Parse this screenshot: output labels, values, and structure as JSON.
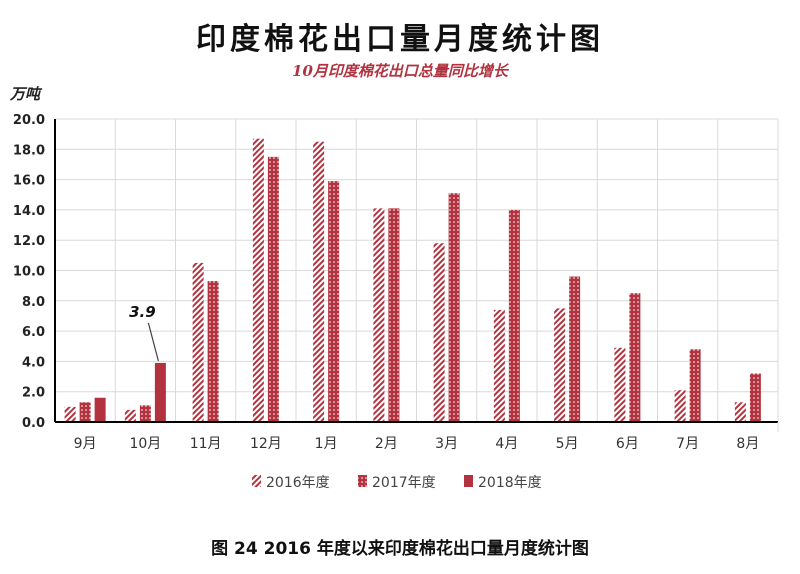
{
  "title": "印度棉花出口量月度统计图",
  "subtitle": "10月印度棉花出口总量同比增长",
  "unit_label": "万吨",
  "caption": "图 24   2016 年度以来印度棉花出口量月度统计图",
  "colors": {
    "series_2016": "#b2333f",
    "series_2017": "#b2333f",
    "series_2018": "#b2333f",
    "grid": "#d9d9d9",
    "axis": "#000000"
  },
  "chart_data": {
    "type": "bar",
    "categories": [
      "9月",
      "10月",
      "11月",
      "12月",
      "1月",
      "2月",
      "3月",
      "4月",
      "5月",
      "6月",
      "7月",
      "8月"
    ],
    "series": [
      {
        "name": "2016年度",
        "pattern": "diagonal-stripes",
        "values": [
          1.0,
          0.8,
          10.5,
          18.7,
          18.5,
          14.1,
          11.8,
          7.4,
          7.5,
          4.9,
          2.1,
          1.3
        ]
      },
      {
        "name": "2017年度",
        "pattern": "dotted",
        "values": [
          1.3,
          1.1,
          9.3,
          17.5,
          15.9,
          14.1,
          15.1,
          14.0,
          9.6,
          8.5,
          4.8,
          3.2
        ]
      },
      {
        "name": "2018年度",
        "pattern": "solid",
        "values": [
          1.6,
          3.9,
          null,
          null,
          null,
          null,
          null,
          null,
          null,
          null,
          null,
          null
        ]
      }
    ],
    "ylim": [
      0,
      20
    ],
    "yticks": [
      "0.0",
      "2.0",
      "4.0",
      "6.0",
      "8.0",
      "10.0",
      "12.0",
      "14.0",
      "16.0",
      "18.0",
      "20.0"
    ],
    "annotation": {
      "text": "3.9",
      "category": "10月",
      "series": "2018年度"
    },
    "grid": true,
    "legend_position": "bottom"
  }
}
